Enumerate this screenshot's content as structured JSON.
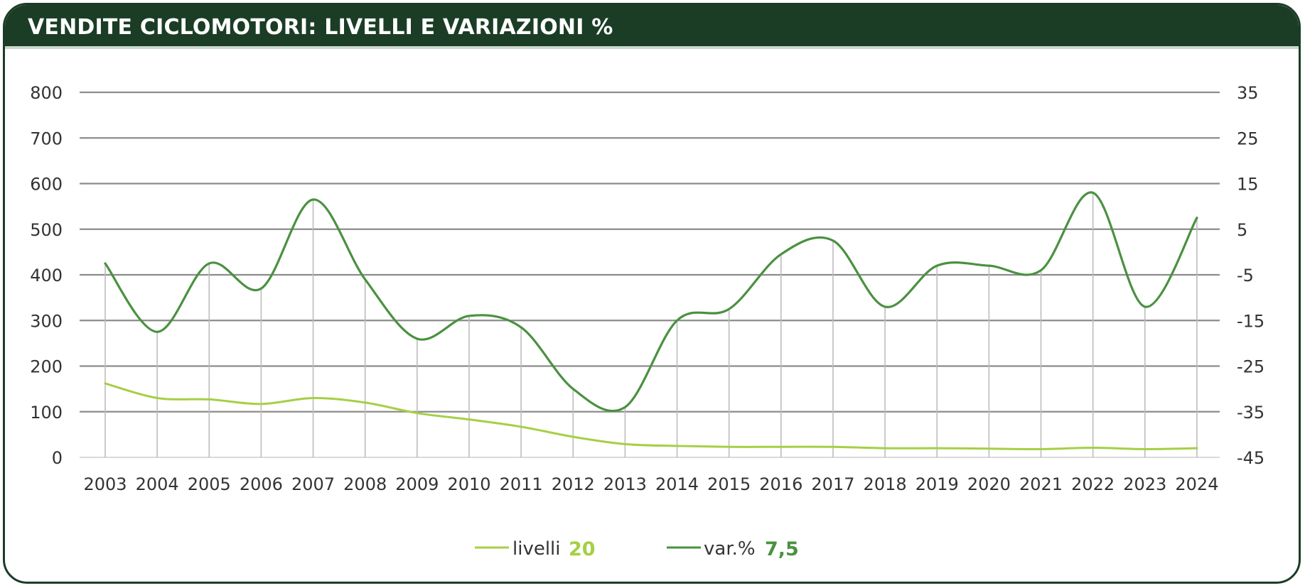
{
  "header": {
    "title": "VENDITE CICLOMOTORI: LIVELLI E VARIAZIONI %"
  },
  "colors": {
    "header_bg": "#1b3d26",
    "livelli": "#a6cf45",
    "var": "#4a9140",
    "grid": "#8c8c8c",
    "drop": "#bdbdbd"
  },
  "chart_data": {
    "type": "line",
    "title": "VENDITE CICLOMOTORI: LIVELLI E VARIAZIONI %",
    "categories": [
      "2003",
      "2004",
      "2005",
      "2006",
      "2007",
      "2008",
      "2009",
      "2010",
      "2011",
      "2012",
      "2013",
      "2014",
      "2015",
      "2016",
      "2017",
      "2018",
      "2019",
      "2020",
      "2021",
      "2022",
      "2023",
      "2024"
    ],
    "left_axis": {
      "min": 0,
      "max": 800,
      "ticks": [
        0,
        100,
        200,
        300,
        400,
        500,
        600,
        700,
        800
      ],
      "tick_labels": [
        "0",
        "100",
        "200",
        "300",
        "400",
        "500",
        "600",
        "700",
        "800"
      ]
    },
    "right_axis": {
      "min": -45,
      "max": 35,
      "ticks": [
        -45,
        -35,
        -25,
        -15,
        -5,
        5,
        15,
        25,
        35
      ],
      "tick_labels": [
        "-45",
        "-35",
        "-25",
        "-15",
        "-5",
        "5",
        "15",
        "25",
        "35"
      ]
    },
    "grid": true,
    "legend_position": "bottom-center",
    "series": [
      {
        "name": "livelli",
        "axis": "left",
        "color": "#a6cf45",
        "values": [
          162,
          130,
          127,
          117,
          130,
          120,
          97,
          83,
          67,
          45,
          29,
          25,
          23,
          23,
          23,
          20,
          20,
          19,
          18,
          21,
          18,
          20
        ],
        "legend_value": "20"
      },
      {
        "name": "var.%",
        "axis": "right",
        "color": "#4a9140",
        "values": [
          -2.5,
          -17.5,
          -2.5,
          -8,
          11.5,
          -6,
          -19,
          -14,
          -16.5,
          -30,
          -34,
          -15,
          -12.5,
          -0.5,
          2.5,
          -12,
          -3,
          -3,
          -4,
          13,
          -12,
          7.5
        ],
        "legend_value": "7,5"
      }
    ]
  }
}
